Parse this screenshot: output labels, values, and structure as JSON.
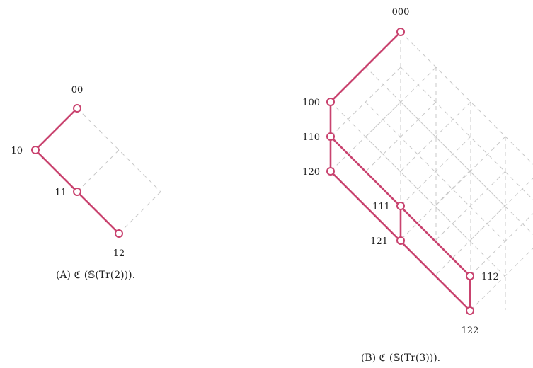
{
  "colors": {
    "edge": "#c9436f",
    "grid": "#c8c8c8",
    "text": "#222222"
  },
  "diagrams": [
    {
      "id": "a",
      "caption": "(A) ℭ (𝕊(Tr(2))).",
      "nodes": [
        {
          "id": "00",
          "label": "00"
        },
        {
          "id": "10",
          "label": "10"
        },
        {
          "id": "11",
          "label": "11"
        },
        {
          "id": "12",
          "label": "12"
        }
      ],
      "edges": [
        [
          "00",
          "10"
        ],
        [
          "10",
          "11"
        ],
        [
          "11",
          "12"
        ]
      ]
    },
    {
      "id": "b",
      "caption": "(B) ℭ (𝕊(Tr(3))).",
      "nodes": [
        {
          "id": "000",
          "label": "000"
        },
        {
          "id": "100",
          "label": "100"
        },
        {
          "id": "110",
          "label": "110"
        },
        {
          "id": "120",
          "label": "120"
        },
        {
          "id": "111",
          "label": "111"
        },
        {
          "id": "121",
          "label": "121"
        },
        {
          "id": "112",
          "label": "112"
        },
        {
          "id": "122",
          "label": "122"
        }
      ],
      "edges": [
        [
          "000",
          "100"
        ],
        [
          "100",
          "110"
        ],
        [
          "110",
          "120"
        ],
        [
          "110",
          "112"
        ],
        [
          "120",
          "122"
        ],
        [
          "112",
          "122"
        ],
        [
          "111",
          "121"
        ]
      ]
    }
  ]
}
